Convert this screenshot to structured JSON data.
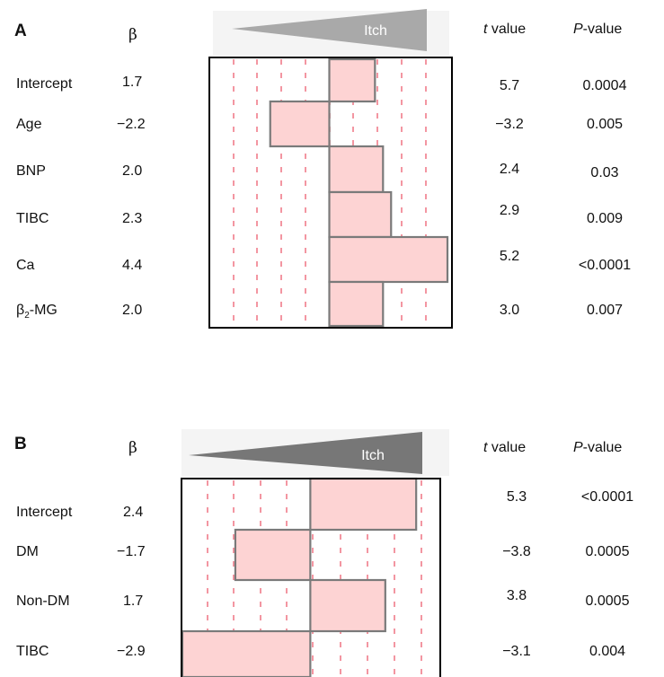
{
  "chart_data": [
    {
      "type": "bar",
      "panel_label": "A",
      "beta_header": "β",
      "t_header_italic": "t",
      "t_header_rest": " value",
      "p_header_italic": "P",
      "p_header_rest": "-value",
      "wedge_label": "Itch",
      "rows": [
        {
          "label": "Intercept",
          "beta_text": "1.7",
          "beta": 1.7,
          "t": "5.7",
          "p": "0.0004"
        },
        {
          "label": "Age",
          "beta_text": "−2.2",
          "beta": -2.2,
          "t": "−3.2",
          "p": "0.005"
        },
        {
          "label": "BNP",
          "beta_text": "2.0",
          "beta": 2.0,
          "t": "2.4",
          "p": "0.03"
        },
        {
          "label": "TIBC",
          "beta_text": "2.3",
          "beta": 2.3,
          "t": "2.9",
          "p": "0.009"
        },
        {
          "label": "Ca",
          "beta_text": "4.4",
          "beta": 4.4,
          "t": "5.2",
          "p": "<0.0001"
        },
        {
          "label_main": "β",
          "label_sub": "2",
          "label_rest": "-MG",
          "beta_text": "2.0",
          "beta": 2.0,
          "t": "3.0",
          "p": "0.007"
        }
      ],
      "xlim": [
        -4.4,
        4.5
      ],
      "grid": "dashed vertical lines",
      "colors": {
        "bar_fill": "#fdd3d3",
        "bar_edge": "#7a7a7a",
        "grid": "#f07c8a",
        "wedge": "#a9a9a9"
      }
    },
    {
      "type": "bar",
      "panel_label": "B",
      "beta_header": "β",
      "t_header_italic": "t",
      "t_header_rest": " value",
      "p_header_italic": "P",
      "p_header_rest": "-value",
      "wedge_label": "Itch",
      "rows": [
        {
          "label": "Intercept",
          "beta_text": "2.4",
          "beta": 2.4,
          "t": "5.3",
          "p": "<0.0001"
        },
        {
          "label": "DM",
          "beta_text": "−1.7",
          "beta": -1.7,
          "t": "−3.8",
          "p": "0.0005"
        },
        {
          "label": "Non-DM",
          "beta_text": "1.7",
          "beta": 1.7,
          "t": "3.8",
          "p": "0.0005"
        },
        {
          "label": "TIBC",
          "beta_text": "−2.9",
          "beta": -2.9,
          "t": "−3.1",
          "p": "0.004"
        }
      ],
      "xlim": [
        -2.9,
        2.6
      ],
      "grid": "dashed vertical lines",
      "colors": {
        "bar_fill": "#fdd3d3",
        "bar_edge": "#7a7a7a",
        "grid": "#f07c8a",
        "wedge": "#777777"
      }
    }
  ]
}
